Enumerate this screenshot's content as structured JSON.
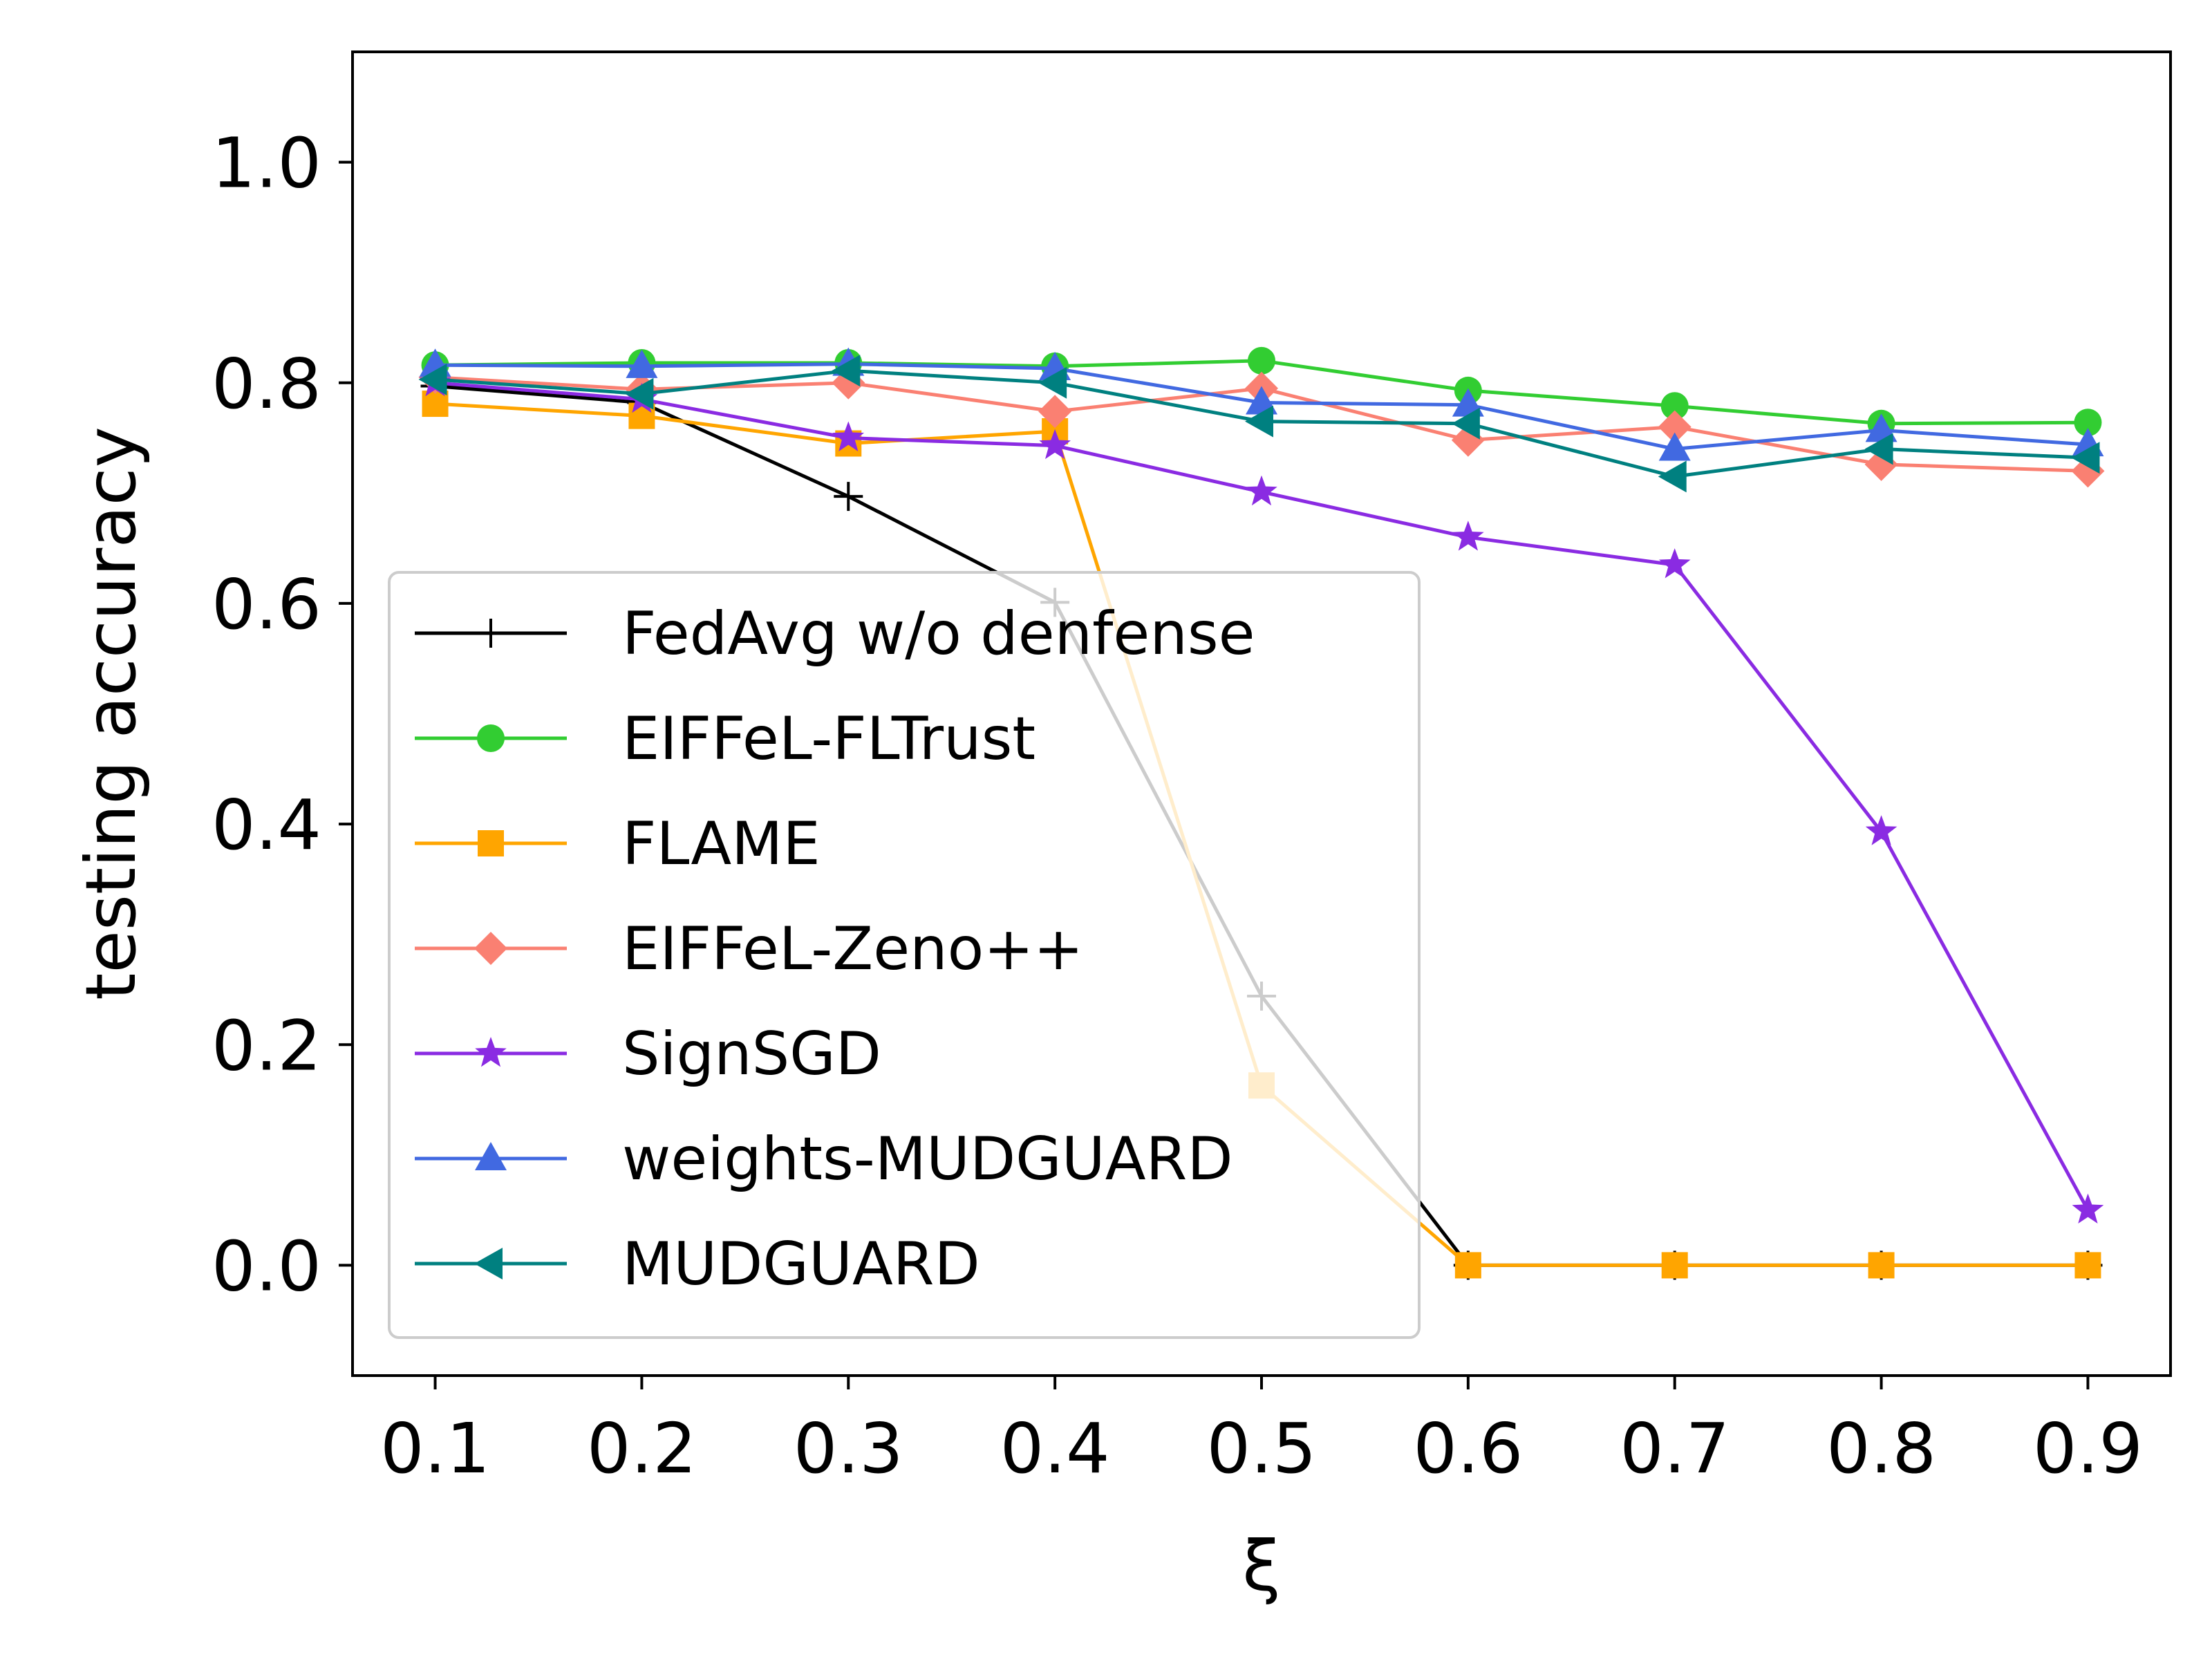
{
  "chart_data": {
    "type": "line",
    "xlabel": "ξ",
    "ylabel": "testing accuracy",
    "xlim": [
      0.06,
      0.94
    ],
    "ylim": [
      -0.1,
      1.1
    ],
    "x": [
      0.1,
      0.2,
      0.3,
      0.4,
      0.5,
      0.6,
      0.7,
      0.8,
      0.9
    ],
    "xtick_labels": [
      "0.1",
      "0.2",
      "0.3",
      "0.4",
      "0.5",
      "0.6",
      "0.7",
      "0.8",
      "0.9"
    ],
    "yticks": [
      0.0,
      0.2,
      0.4,
      0.6,
      0.8,
      1.0
    ],
    "ytick_labels": [
      "0.0",
      "0.2",
      "0.4",
      "0.6",
      "0.8",
      "1.0"
    ],
    "grid": false,
    "legend_position": "lower-left",
    "series": [
      {
        "name": "FedAvg w/o denfense",
        "color": "#000000",
        "marker": "plus",
        "values": [
          0.797,
          0.782,
          0.697,
          0.601,
          0.244,
          0.0,
          0.0,
          0.0,
          0.0
        ]
      },
      {
        "name": "EIFFeL-FLTrust",
        "color": "#32cd32",
        "marker": "circle",
        "values": [
          0.816,
          0.818,
          0.818,
          0.815,
          0.82,
          0.793,
          0.779,
          0.763,
          0.764
        ]
      },
      {
        "name": "FLAME",
        "color": "#ffa500",
        "marker": "square",
        "values": [
          0.781,
          0.77,
          0.745,
          0.756,
          0.163,
          0.0,
          0.0,
          0.0,
          0.0
        ]
      },
      {
        "name": "EIFFeL-Zeno++",
        "color": "#fa8072",
        "marker": "diamond",
        "values": [
          0.805,
          0.794,
          0.8,
          0.774,
          0.795,
          0.748,
          0.76,
          0.726,
          0.72
        ]
      },
      {
        "name": "SignSGD",
        "color": "#8a2be2",
        "marker": "star",
        "values": [
          0.8,
          0.785,
          0.75,
          0.743,
          0.701,
          0.66,
          0.635,
          0.393,
          0.05
        ]
      },
      {
        "name": "weights-MUDGUARD",
        "color": "#4169e1",
        "marker": "triangle-up",
        "values": [
          0.816,
          0.815,
          0.817,
          0.813,
          0.782,
          0.78,
          0.74,
          0.757,
          0.744
        ]
      },
      {
        "name": "MUDGUARD",
        "color": "#008080",
        "marker": "triangle-left",
        "values": [
          0.803,
          0.79,
          0.811,
          0.8,
          0.765,
          0.763,
          0.715,
          0.74,
          0.732
        ]
      }
    ]
  }
}
